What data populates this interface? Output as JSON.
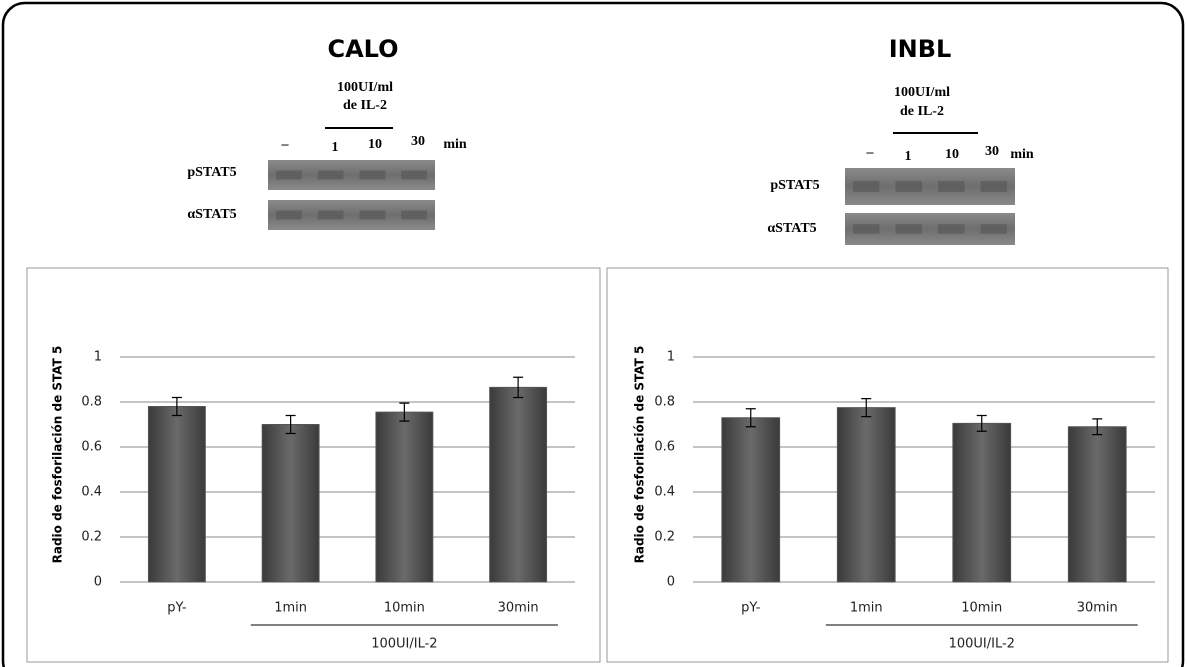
{
  "panels": [
    {
      "title": "CALO",
      "blot": {
        "treatment": [
          "100UI/ml",
          "de IL-2"
        ],
        "lanes": [
          "–",
          "1",
          "10",
          "30"
        ],
        "unit": "min",
        "rows": [
          "pSTAT5",
          "αSTAT5"
        ]
      }
    },
    {
      "title": "INBL",
      "blot": {
        "treatment": [
          "100UI/ml",
          "de IL-2"
        ],
        "lanes": [
          "–",
          "1",
          "10",
          "30"
        ],
        "unit": "min",
        "rows": [
          "pSTAT5",
          "αSTAT5"
        ]
      }
    }
  ],
  "chart_data": [
    {
      "type": "bar",
      "ylabel": "Radio de fosforilación de STAT 5",
      "categories": [
        "pY-",
        "1min",
        "10min",
        "30min"
      ],
      "values": [
        0.78,
        0.7,
        0.755,
        0.865
      ],
      "errors": [
        0.04,
        0.04,
        0.04,
        0.045
      ],
      "group_label": "100UI/IL-2",
      "color": "#555555",
      "ylim": [
        0,
        1
      ],
      "yticks": [
        0,
        0.2,
        0.4,
        0.6,
        0.8,
        1
      ],
      "grid": true
    },
    {
      "type": "bar",
      "ylabel": "Radio de fosforilación de STAT 5",
      "categories": [
        "pY-",
        "1min",
        "10min",
        "30min"
      ],
      "values": [
        0.73,
        0.775,
        0.705,
        0.69
      ],
      "errors": [
        0.04,
        0.04,
        0.035,
        0.035
      ],
      "group_label": "100UI/IL-2",
      "color": "#555555",
      "ylim": [
        0,
        1
      ],
      "yticks": [
        0,
        0.2,
        0.4,
        0.6,
        0.8,
        1
      ],
      "grid": true
    }
  ]
}
